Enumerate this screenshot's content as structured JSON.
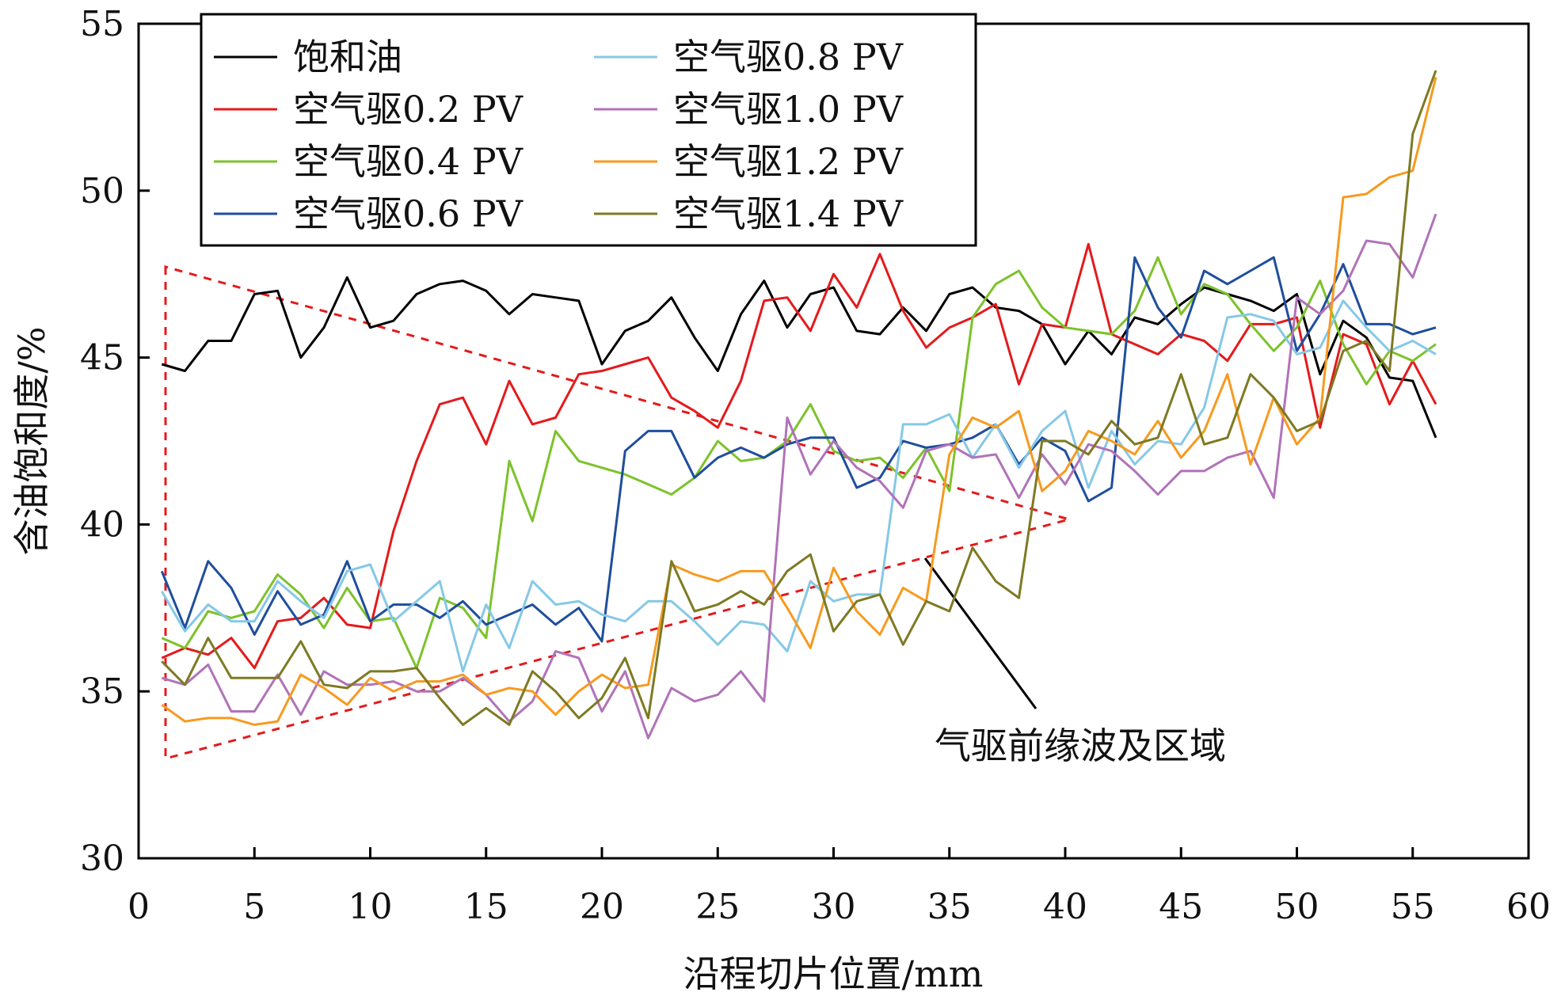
{
  "chart_data": {
    "type": "line",
    "title": "",
    "xlabel": "沿程切片位置/mm",
    "ylabel": "含油饱和度/%",
    "xlim": [
      0,
      60
    ],
    "ylim": [
      30,
      55
    ],
    "xticks": [
      0,
      5,
      10,
      15,
      20,
      25,
      30,
      35,
      40,
      45,
      50,
      55,
      60
    ],
    "yticks": [
      30,
      35,
      40,
      45,
      50,
      55
    ],
    "grid": false,
    "legend_position": "top-left",
    "x": [
      1,
      2,
      3,
      4,
      5,
      6,
      7,
      8,
      9,
      10,
      11,
      12,
      13,
      14,
      15,
      16,
      17,
      18,
      19,
      20,
      21,
      22,
      23,
      24,
      25,
      26,
      27,
      28,
      29,
      30,
      31,
      32,
      33,
      34,
      35,
      36,
      37,
      38,
      39,
      40,
      41,
      42,
      43,
      44,
      45,
      46,
      47,
      48,
      49,
      50,
      51,
      52,
      53,
      54,
      55,
      56
    ],
    "series": [
      {
        "name": "饱和油",
        "color": "#000000",
        "values": [
          44.8,
          44.6,
          45.5,
          45.5,
          46.9,
          47.0,
          45.0,
          45.9,
          47.4,
          45.9,
          46.1,
          46.9,
          47.2,
          47.3,
          47.0,
          46.3,
          46.9,
          46.8,
          46.7,
          44.8,
          45.8,
          46.1,
          46.8,
          45.6,
          44.6,
          46.3,
          47.3,
          45.9,
          46.9,
          47.1,
          45.8,
          45.7,
          46.5,
          45.8,
          46.9,
          47.1,
          46.5,
          46.4,
          46.0,
          44.8,
          45.8,
          45.1,
          46.2,
          46.0,
          46.6,
          47.1,
          46.9,
          46.7,
          46.4,
          46.9,
          44.5,
          46.1,
          45.6,
          44.4,
          44.3,
          42.6
        ]
      },
      {
        "name": "空气驱0.2 PV",
        "color": "#e41a1c",
        "values": [
          36.0,
          36.3,
          36.1,
          36.6,
          35.7,
          37.1,
          37.2,
          37.8,
          37.0,
          36.9,
          39.8,
          41.9,
          43.6,
          43.8,
          42.4,
          44.3,
          43.0,
          43.2,
          44.5,
          44.6,
          44.8,
          45.0,
          43.8,
          43.4,
          42.9,
          44.3,
          46.7,
          46.8,
          45.8,
          47.5,
          46.5,
          48.1,
          46.4,
          45.3,
          45.9,
          46.2,
          46.6,
          44.2,
          46.0,
          45.9,
          48.4,
          45.7,
          45.4,
          45.1,
          45.7,
          45.5,
          44.9,
          46.0,
          46.0,
          46.2,
          42.9,
          45.7,
          45.4,
          43.6,
          44.9,
          43.6
        ]
      },
      {
        "name": "空气驱0.4 PV",
        "color": "#7dc22b",
        "values": [
          36.6,
          36.3,
          37.4,
          37.2,
          37.4,
          38.5,
          37.9,
          36.9,
          38.1,
          37.1,
          37.2,
          35.7,
          37.8,
          37.5,
          36.6,
          41.9,
          40.1,
          42.8,
          41.9,
          41.7,
          41.5,
          41.2,
          40.9,
          41.4,
          42.5,
          41.9,
          42.0,
          42.5,
          43.6,
          42.2,
          41.9,
          42.0,
          41.4,
          42.3,
          41.0,
          46.2,
          47.2,
          47.6,
          46.5,
          45.9,
          45.8,
          45.7,
          46.4,
          48.0,
          46.3,
          47.2,
          46.9,
          46.0,
          45.2,
          45.9,
          47.3,
          45.4,
          44.2,
          45.2,
          44.9,
          45.4
        ]
      },
      {
        "name": "空气驱0.6 PV",
        "color": "#1f4e9c",
        "values": [
          38.6,
          36.9,
          38.9,
          38.1,
          36.7,
          38.0,
          37.0,
          37.3,
          38.9,
          37.1,
          37.6,
          37.6,
          37.2,
          37.7,
          37.0,
          37.3,
          37.6,
          37.0,
          37.5,
          36.5,
          42.2,
          42.8,
          42.8,
          41.4,
          42.0,
          42.3,
          42.0,
          42.4,
          42.6,
          42.6,
          41.1,
          41.4,
          42.5,
          42.3,
          42.4,
          42.6,
          43.0,
          41.8,
          42.6,
          42.2,
          40.7,
          41.1,
          48.0,
          46.5,
          45.6,
          47.6,
          47.2,
          47.6,
          48.0,
          45.2,
          46.3,
          47.8,
          46.0,
          46.0,
          45.7,
          45.9
        ]
      },
      {
        "name": "空气驱0.8 PV",
        "color": "#86c8e6",
        "values": [
          38.0,
          36.8,
          37.6,
          37.1,
          37.1,
          38.3,
          37.7,
          37.2,
          38.6,
          38.8,
          37.1,
          37.7,
          38.3,
          35.6,
          37.6,
          36.3,
          38.3,
          37.6,
          37.7,
          37.3,
          37.1,
          37.7,
          37.7,
          37.1,
          36.4,
          37.1,
          37.0,
          36.2,
          38.3,
          37.7,
          37.9,
          37.9,
          43.0,
          43.0,
          43.3,
          42.0,
          43.0,
          41.7,
          42.8,
          43.4,
          41.1,
          42.8,
          41.8,
          42.5,
          42.4,
          43.5,
          46.2,
          46.3,
          46.1,
          45.1,
          45.3,
          46.7,
          45.9,
          45.2,
          45.5,
          45.1
        ]
      },
      {
        "name": "空气驱1.0 PV",
        "color": "#b073b8",
        "values": [
          35.4,
          35.2,
          35.8,
          34.4,
          34.4,
          35.5,
          34.3,
          35.6,
          35.2,
          35.2,
          35.3,
          35.0,
          35.0,
          35.4,
          34.9,
          34.1,
          34.7,
          36.2,
          36.0,
          34.4,
          35.6,
          33.6,
          35.1,
          34.7,
          34.9,
          35.6,
          34.7,
          43.2,
          41.5,
          42.5,
          41.7,
          41.3,
          40.5,
          42.2,
          42.4,
          42.0,
          42.1,
          40.8,
          42.1,
          41.2,
          42.4,
          42.2,
          41.6,
          40.9,
          41.6,
          41.6,
          42.0,
          42.2,
          40.8,
          46.8,
          46.3,
          47.0,
          48.5,
          48.4,
          47.4,
          49.3
        ]
      },
      {
        "name": "空气驱1.2 PV",
        "color": "#f79a1f",
        "values": [
          34.6,
          34.1,
          34.2,
          34.2,
          34.0,
          34.1,
          35.5,
          35.1,
          34.6,
          35.4,
          35.0,
          35.3,
          35.3,
          35.5,
          34.9,
          35.1,
          35.0,
          34.3,
          35.0,
          35.5,
          35.1,
          35.2,
          38.8,
          38.5,
          38.3,
          38.6,
          38.6,
          37.5,
          36.3,
          38.7,
          37.4,
          36.7,
          38.1,
          37.7,
          42.1,
          43.2,
          42.9,
          43.4,
          41.0,
          41.6,
          42.8,
          42.5,
          42.1,
          43.1,
          42.0,
          42.8,
          44.5,
          41.8,
          43.8,
          42.4,
          43.2,
          49.8,
          49.9,
          50.4,
          50.6,
          53.4
        ]
      },
      {
        "name": "空气驱1.4 PV",
        "color": "#7d7a23",
        "values": [
          35.9,
          35.2,
          36.6,
          35.4,
          35.4,
          35.4,
          36.5,
          35.2,
          35.1,
          35.6,
          35.6,
          35.7,
          34.8,
          34.0,
          34.5,
          34.0,
          35.6,
          35.0,
          34.2,
          34.8,
          36.0,
          34.2,
          38.9,
          37.4,
          37.6,
          38.0,
          37.6,
          38.6,
          39.1,
          36.8,
          37.7,
          37.9,
          36.4,
          37.7,
          37.4,
          39.3,
          38.3,
          37.8,
          42.5,
          42.5,
          42.1,
          43.1,
          42.4,
          42.6,
          44.5,
          42.4,
          42.6,
          44.5,
          43.8,
          42.8,
          43.1,
          45.2,
          45.5,
          44.6,
          51.7,
          53.6
        ]
      }
    ],
    "annotation": {
      "text": "气驱前缘波及区域"
    }
  }
}
